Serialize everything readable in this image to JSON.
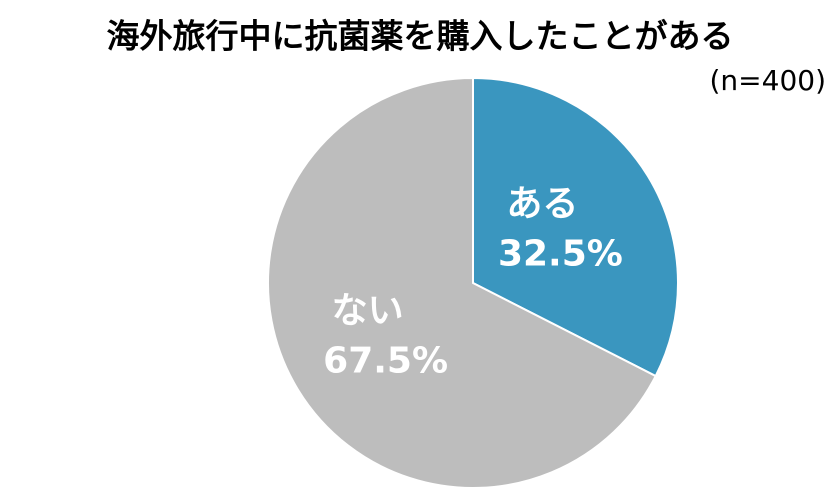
{
  "chart_data": {
    "type": "pie",
    "title": "海外旅行中に抗菌薬を購入したことがある",
    "subtitle": "(n=400)",
    "categories": [
      "ある",
      "ない"
    ],
    "values": [
      32.5,
      67.5
    ],
    "value_labels": [
      "32.5%",
      "67.5%"
    ],
    "colors": [
      "#3a96bf",
      "#bdbdbd"
    ]
  }
}
